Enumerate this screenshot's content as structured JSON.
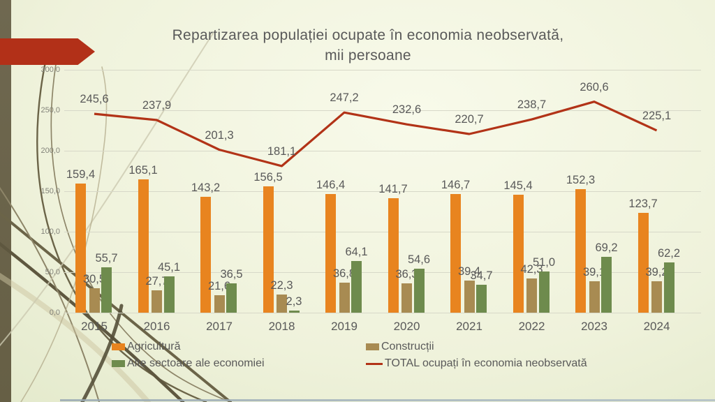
{
  "slide": {
    "title_line1": "Repartizarea populației ocupate în economia neobservată,",
    "title_line2": "mii persoane"
  },
  "chart_data": {
    "type": "combo-bar-line",
    "title": "Repartizarea populației ocupate în economia neobservată, mii persoane",
    "categories": [
      "2015",
      "2016",
      "2017",
      "2018",
      "2019",
      "2020",
      "2021",
      "2022",
      "2023",
      "2024"
    ],
    "series": [
      {
        "name": "Agricultură",
        "type": "bar",
        "color": "#E8841F",
        "values": [
          159.4,
          165.1,
          143.2,
          156.5,
          146.4,
          141.7,
          146.7,
          145.4,
          152.3,
          123.7
        ]
      },
      {
        "name": "Construcții",
        "type": "bar",
        "color": "#A88B52",
        "values": [
          30.5,
          27.7,
          21.6,
          22.3,
          36.8,
          36.3,
          39.4,
          42.3,
          39.1,
          39.2
        ]
      },
      {
        "name": "Alte sectoare ale economiei",
        "type": "bar",
        "color": "#6E8B4D",
        "values": [
          55.7,
          45.1,
          36.5,
          2.3,
          64.1,
          54.6,
          34.7,
          51.0,
          69.2,
          62.2
        ]
      },
      {
        "name": "TOTAL ocupați în economia neobservată",
        "type": "line",
        "color": "#B23317",
        "values": [
          245.6,
          237.9,
          201.3,
          181.1,
          247.2,
          232.6,
          220.7,
          238.7,
          260.6,
          225.1
        ]
      }
    ],
    "y_axis": {
      "min": 0,
      "max": 300,
      "step": 50,
      "tick_labels": [
        "0,0",
        "50,0",
        "100,0",
        "150,0",
        "200,0",
        "250,0",
        "300,0"
      ]
    },
    "grid": true,
    "legend_position": "bottom",
    "value_label_decimal_separator": ","
  },
  "decor": {
    "accent_red": "#B23018",
    "stripe_olive": "#6F6850",
    "background_green": "#EFF2DB"
  }
}
